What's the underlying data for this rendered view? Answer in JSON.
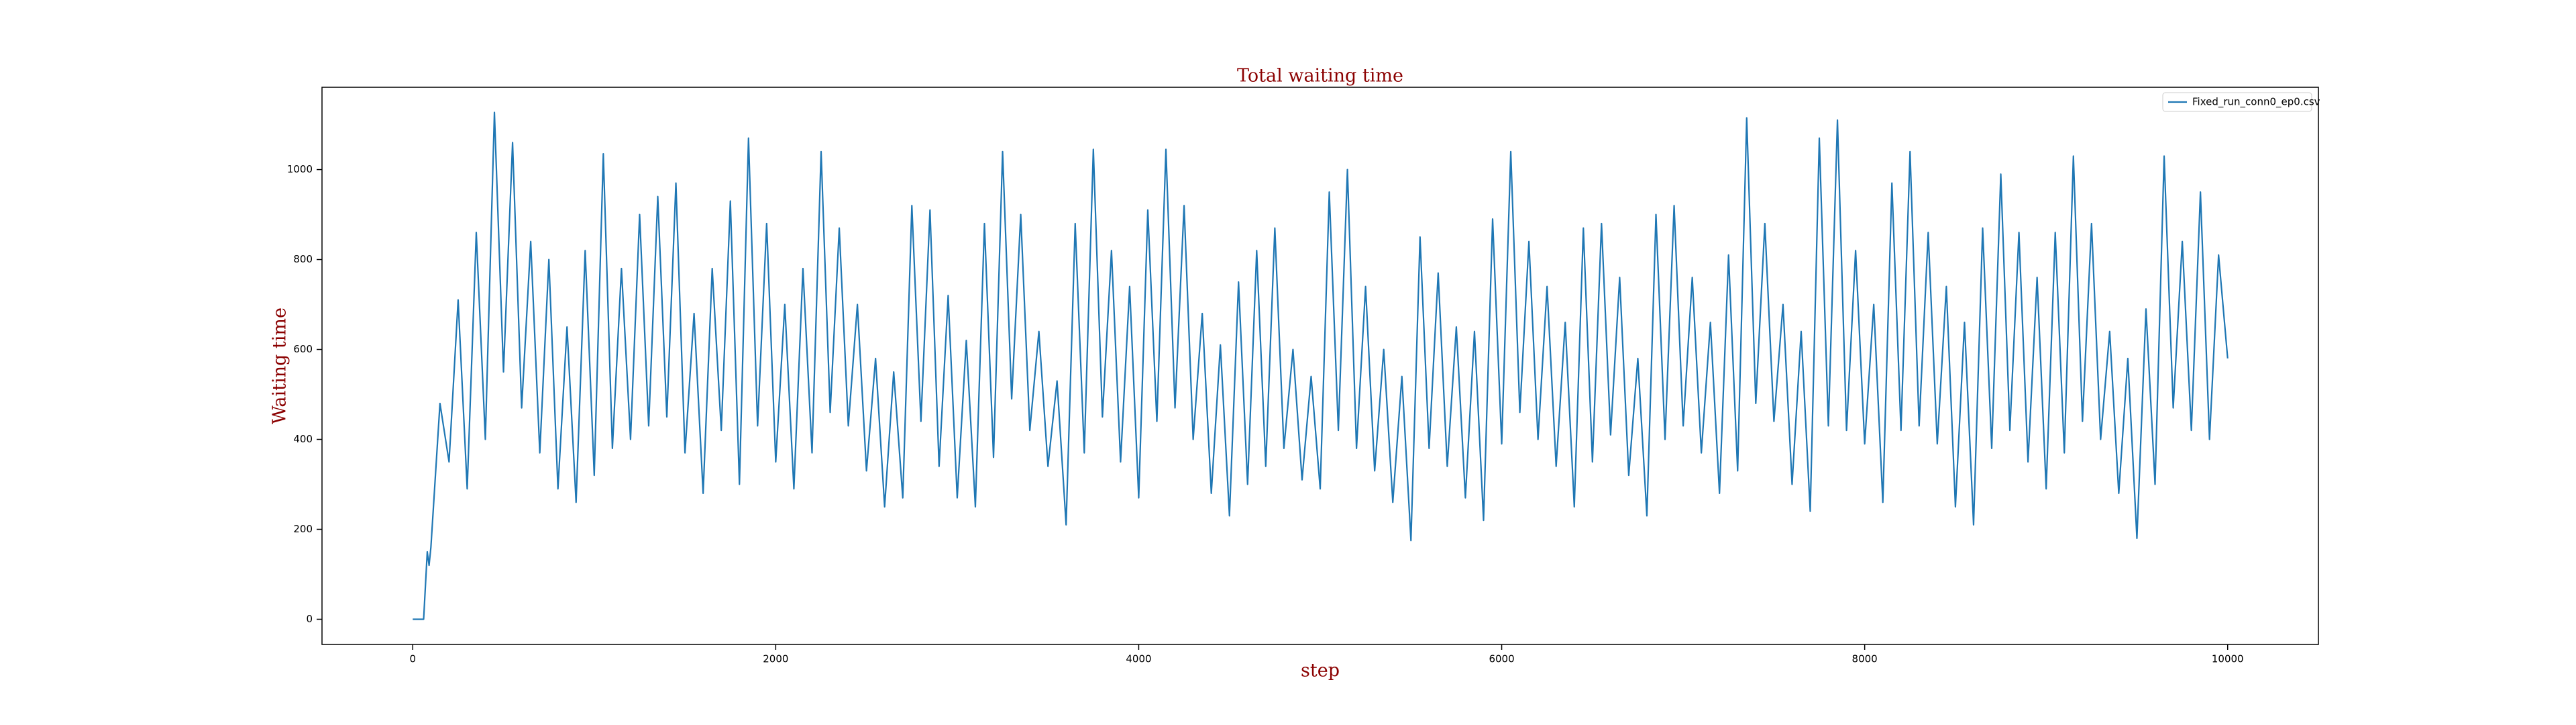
{
  "chart_data": {
    "type": "line",
    "title": "Total waiting time",
    "xlabel": "step",
    "ylabel": "Waiting time",
    "xlim": [
      -500,
      10500
    ],
    "ylim": [
      -56,
      1183
    ],
    "xticks": [
      0,
      2000,
      4000,
      6000,
      8000,
      10000
    ],
    "yticks": [
      0,
      200,
      400,
      600,
      800,
      1000
    ],
    "legend": "upper right",
    "series": [
      {
        "name": "Fixed_run_conn0_ep0.csv",
        "color": "#1f77b4",
        "x": [
          0,
          60,
          80,
          90,
          100,
          150,
          200,
          250,
          300,
          350,
          400,
          450,
          500,
          550,
          600,
          650,
          700,
          750,
          800,
          850,
          900,
          950,
          1000,
          1050,
          1100,
          1150,
          1200,
          1250,
          1300,
          1350,
          1400,
          1450,
          1500,
          1550,
          1600,
          1650,
          1700,
          1750,
          1800,
          1850,
          1900,
          1950,
          2000,
          2050,
          2100,
          2150,
          2200,
          2250,
          2300,
          2350,
          2400,
          2450,
          2500,
          2550,
          2600,
          2650,
          2700,
          2750,
          2800,
          2850,
          2900,
          2950,
          3000,
          3050,
          3100,
          3150,
          3200,
          3250,
          3300,
          3350,
          3400,
          3450,
          3500,
          3550,
          3600,
          3650,
          3700,
          3750,
          3800,
          3850,
          3900,
          3950,
          4000,
          4050,
          4100,
          4150,
          4200,
          4250,
          4300,
          4350,
          4400,
          4450,
          4500,
          4550,
          4600,
          4650,
          4700,
          4750,
          4800,
          4850,
          4900,
          4950,
          5000,
          5050,
          5100,
          5150,
          5200,
          5250,
          5300,
          5350,
          5400,
          5450,
          5500,
          5550,
          5600,
          5650,
          5700,
          5750,
          5800,
          5850,
          5900,
          5950,
          6000,
          6050,
          6100,
          6150,
          6200,
          6250,
          6300,
          6350,
          6400,
          6450,
          6500,
          6550,
          6600,
          6650,
          6700,
          6750,
          6800,
          6850,
          6900,
          6950,
          7000,
          7050,
          7100,
          7150,
          7200,
          7250,
          7300,
          7350,
          7400,
          7450,
          7500,
          7550,
          7600,
          7650,
          7700,
          7750,
          7800,
          7850,
          7900,
          7950,
          8000,
          8050,
          8100,
          8150,
          8200,
          8250,
          8300,
          8350,
          8400,
          8450,
          8500,
          8550,
          8600,
          8650,
          8700,
          8750,
          8800,
          8850,
          8900,
          8950,
          9000,
          9050,
          9100,
          9150,
          9200,
          9250,
          9300,
          9350,
          9400,
          9450,
          9500,
          9550,
          9600,
          9650,
          9700,
          9750,
          9800,
          9850,
          9900,
          9950,
          10000
        ],
        "values": [
          0,
          0,
          150,
          120,
          160,
          480,
          350,
          710,
          290,
          860,
          400,
          1127,
          550,
          1060,
          470,
          840,
          370,
          800,
          290,
          650,
          260,
          820,
          320,
          1035,
          380,
          780,
          400,
          900,
          430,
          940,
          450,
          970,
          370,
          680,
          280,
          780,
          420,
          930,
          300,
          1070,
          430,
          880,
          350,
          700,
          290,
          780,
          370,
          1040,
          460,
          870,
          430,
          700,
          330,
          580,
          250,
          550,
          270,
          920,
          440,
          910,
          340,
          720,
          270,
          620,
          250,
          880,
          360,
          1040,
          490,
          900,
          420,
          640,
          340,
          530,
          210,
          880,
          370,
          1045,
          450,
          820,
          350,
          740,
          270,
          910,
          440,
          1045,
          470,
          920,
          400,
          680,
          280,
          610,
          230,
          750,
          300,
          820,
          340,
          870,
          380,
          600,
          310,
          540,
          290,
          950,
          420,
          1000,
          380,
          740,
          330,
          600,
          260,
          540,
          175,
          850,
          380,
          770,
          340,
          650,
          270,
          640,
          220,
          890,
          390,
          1040,
          460,
          840,
          400,
          740,
          340,
          660,
          250,
          870,
          350,
          880,
          410,
          760,
          320,
          580,
          230,
          900,
          400,
          920,
          430,
          760,
          370,
          660,
          280,
          810,
          330,
          1115,
          480,
          880,
          440,
          700,
          300,
          640,
          240,
          1070,
          430,
          1110,
          420,
          820,
          390,
          700,
          260,
          970,
          420,
          1040,
          430,
          860,
          390,
          740,
          250,
          660,
          210,
          870,
          380,
          990,
          420,
          860,
          350,
          760,
          290,
          860,
          370,
          1030,
          440,
          880,
          400,
          640,
          280,
          580,
          180,
          690,
          300,
          1030,
          470,
          840,
          420,
          950,
          400,
          810,
          580
        ]
      }
    ]
  }
}
